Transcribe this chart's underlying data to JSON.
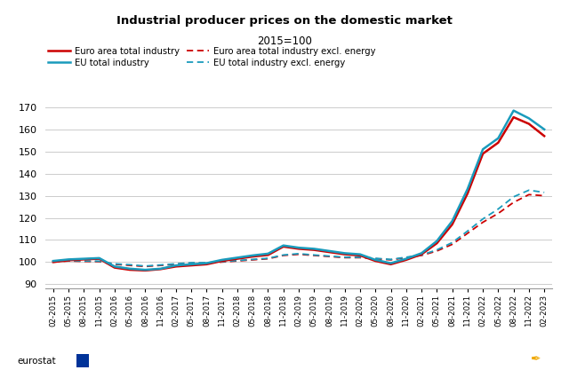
{
  "title": "Industrial producer prices on the domestic market",
  "subtitle": "2015=100",
  "ylim": [
    88,
    175
  ],
  "yticks": [
    90,
    100,
    110,
    120,
    130,
    140,
    150,
    160,
    170
  ],
  "bg_color": "#ffffff",
  "plot_bg_color": "#ffffff",
  "grid_color": "#cccccc",
  "euro_total_color": "#cc0000",
  "eu_total_color": "#1a9bbc",
  "euro_excl_color": "#cc0000",
  "eu_excl_color": "#1a9bbc",
  "legend_labels": [
    "Euro area total industry",
    "EU total industry",
    "Euro area total industry excl. energy",
    "EU total industry excl. energy"
  ],
  "x_labels": [
    "02-2015",
    "05-2015",
    "08-2015",
    "11-2015",
    "02-2016",
    "05-2016",
    "08-2016",
    "11-2016",
    "02-2017",
    "05-2017",
    "08-2017",
    "11-2017",
    "02-2018",
    "05-2018",
    "08-2018",
    "11-2018",
    "02-2019",
    "05-2019",
    "08-2019",
    "11-2019",
    "02-2020",
    "05-2020",
    "08-2020",
    "11-2020",
    "02-2021",
    "05-2021",
    "08-2021",
    "11-2021",
    "02-2022",
    "05-2022",
    "08-2022",
    "11-2022",
    "02-2023"
  ],
  "euro_total": [
    100.0,
    100.8,
    101.2,
    101.5,
    97.5,
    96.5,
    96.2,
    96.8,
    98.0,
    98.5,
    99.0,
    100.5,
    101.5,
    102.5,
    103.2,
    107.0,
    106.0,
    105.5,
    104.5,
    103.5,
    103.0,
    100.5,
    99.0,
    101.0,
    103.5,
    108.5,
    117.0,
    131.0,
    149.0,
    154.0,
    165.5,
    162.5,
    157.0
  ],
  "eu_total": [
    100.5,
    101.2,
    101.5,
    101.8,
    98.0,
    97.0,
    96.5,
    97.0,
    98.5,
    99.0,
    99.5,
    101.0,
    102.0,
    103.0,
    103.8,
    107.5,
    106.5,
    106.0,
    105.0,
    104.0,
    103.5,
    101.0,
    99.5,
    101.5,
    104.0,
    109.5,
    118.5,
    133.0,
    151.0,
    156.0,
    168.5,
    165.0,
    160.0
  ],
  "euro_excl": [
    100.0,
    100.5,
    100.3,
    100.2,
    99.0,
    98.5,
    98.0,
    98.5,
    99.0,
    99.5,
    99.5,
    100.0,
    100.5,
    101.0,
    101.5,
    103.0,
    103.5,
    103.0,
    102.5,
    102.0,
    102.0,
    101.5,
    101.0,
    102.0,
    103.0,
    105.0,
    108.0,
    113.0,
    118.0,
    122.0,
    127.0,
    130.5,
    130.0
  ],
  "eu_excl": [
    100.2,
    100.7,
    100.5,
    100.4,
    99.2,
    98.8,
    98.2,
    98.7,
    99.2,
    99.7,
    99.7,
    100.2,
    100.7,
    101.2,
    101.7,
    103.2,
    103.8,
    103.2,
    102.7,
    102.2,
    102.2,
    101.7,
    101.2,
    102.2,
    103.2,
    105.5,
    108.8,
    114.0,
    119.5,
    124.0,
    129.5,
    132.5,
    131.5
  ]
}
